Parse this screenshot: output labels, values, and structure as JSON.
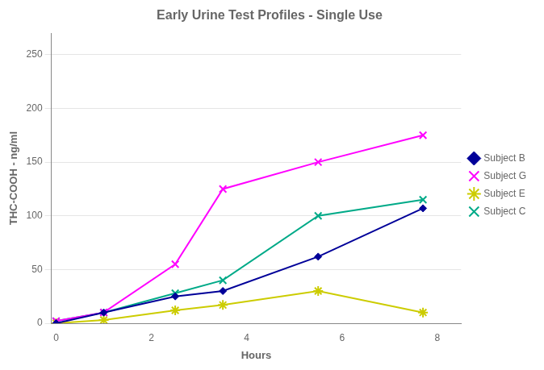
{
  "chart_data": {
    "type": "line",
    "title": "Early Urine Test Profiles - Single Use",
    "x_label": "Hours",
    "y_label": "THC-COOH - ng/ml",
    "x": [
      0,
      1,
      2.5,
      3.5,
      5.5,
      7.7
    ],
    "series": [
      {
        "name": "Subject B",
        "color": "#000099",
        "marker": "diamond",
        "values": [
          0,
          10,
          25,
          30,
          62,
          107
        ]
      },
      {
        "name": "Subject G",
        "color": "#FF00FF",
        "marker": "x",
        "values": [
          2,
          10,
          55,
          125,
          150,
          175
        ]
      },
      {
        "name": "Subject E",
        "color": "#CCCC00",
        "marker": "star",
        "values": [
          0,
          3,
          12,
          17,
          30,
          10
        ]
      },
      {
        "name": "Subject C",
        "color": "#00AA88",
        "marker": "x",
        "values": [
          2,
          10,
          28,
          40,
          100,
          115
        ]
      }
    ],
    "xlim": [
      -0.1,
      8.5
    ],
    "xticks": [
      0,
      2,
      4,
      6,
      8
    ],
    "ylim": [
      0,
      270
    ],
    "yticks": [
      0,
      50,
      100,
      150,
      200,
      250
    ],
    "grid": "y",
    "legend": "right"
  }
}
